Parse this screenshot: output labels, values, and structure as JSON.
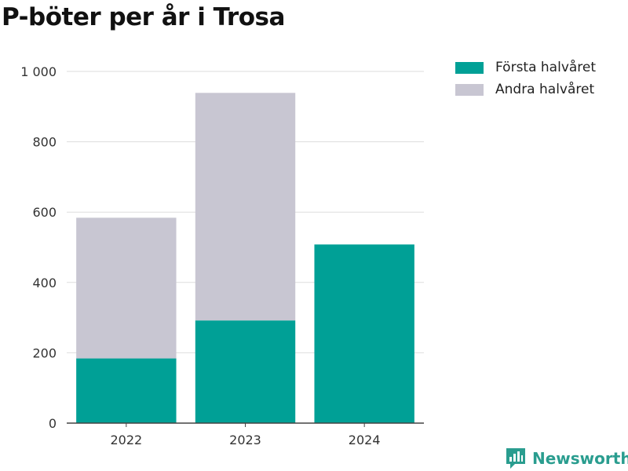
{
  "chart_data": {
    "type": "bar",
    "stacked": true,
    "title": "P-böter per år i Trosa",
    "categories": [
      "2022",
      "2023",
      "2024"
    ],
    "series": [
      {
        "name": "Första halvåret",
        "color": "#00a096",
        "values": [
          184,
          292,
          508
        ]
      },
      {
        "name": "Andra halvåret",
        "color": "#c8c6d2",
        "values": [
          400,
          647,
          0
        ]
      }
    ],
    "ylim": [
      0,
      1000
    ],
    "yticks": [
      0,
      200,
      400,
      600,
      800,
      1000
    ],
    "ytick_labels": [
      "0",
      "200",
      "400",
      "600",
      "800",
      "1 000"
    ],
    "xlabel": "",
    "ylabel": "",
    "grid": true,
    "legend_position": "top-right"
  },
  "brand": {
    "name": "Newsworthy",
    "color": "#2a9d8f"
  }
}
